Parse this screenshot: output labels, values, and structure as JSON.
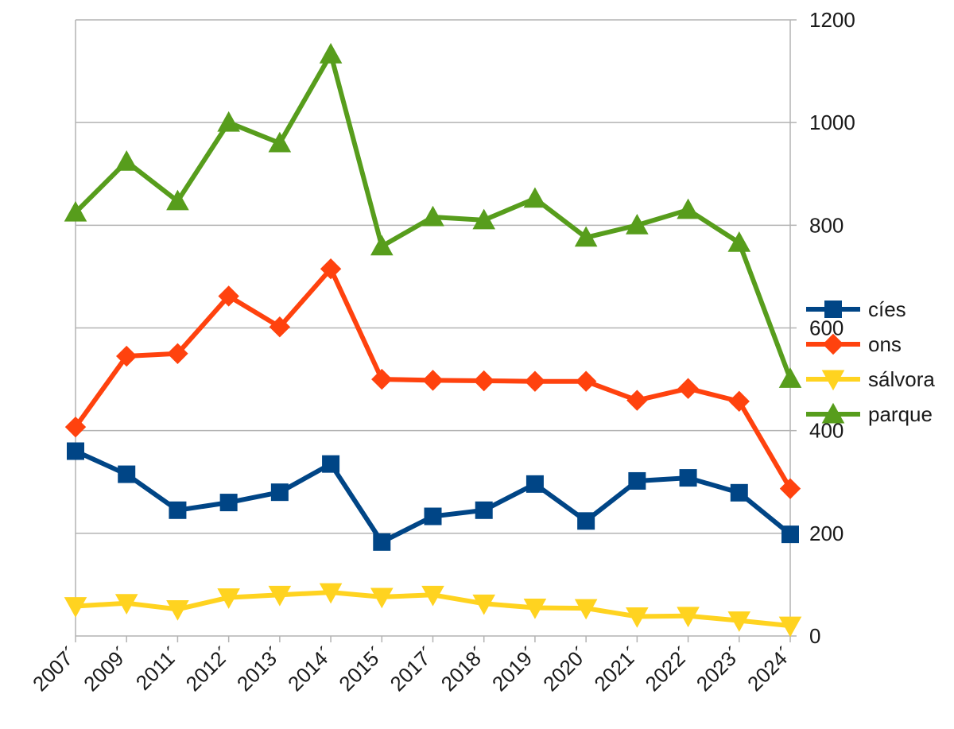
{
  "chart_data": {
    "type": "line",
    "title": "",
    "xlabel": "",
    "ylabel": "",
    "categories": [
      "2007´",
      "2009´",
      "2011´",
      "2012´",
      "2013´",
      "2014´",
      "2015´",
      "2017´",
      "2018´",
      "2019´",
      "2020´",
      "2021´",
      "2022´",
      "2023´",
      "2024´"
    ],
    "ylim": [
      0,
      1200
    ],
    "yticks": [
      0,
      200,
      400,
      600,
      800,
      1000,
      1200
    ],
    "grid": true,
    "y_axis_side": "right",
    "legend_position": "right",
    "series": [
      {
        "name": "cíes",
        "color": "#004586",
        "marker": "square",
        "values": [
          360,
          315,
          245,
          260,
          280,
          335,
          183,
          233,
          245,
          296,
          224,
          302,
          308,
          279,
          198
        ]
      },
      {
        "name": "ons",
        "color": "#ff420e",
        "marker": "diamond",
        "values": [
          407,
          545,
          550,
          662,
          602,
          715,
          500,
          498,
          497,
          496,
          496,
          459,
          482,
          457,
          287
        ]
      },
      {
        "name": "sálvora",
        "color": "#ffd320",
        "marker": "triangle-down",
        "values": [
          58,
          64,
          52,
          75,
          80,
          85,
          76,
          80,
          63,
          55,
          54,
          38,
          39,
          30,
          20
        ]
      },
      {
        "name": "parque",
        "color": "#579d1c",
        "marker": "triangle-up",
        "values": [
          825,
          924,
          847,
          1000,
          960,
          1133,
          759,
          816,
          810,
          852,
          776,
          800,
          830,
          766,
          501
        ]
      }
    ]
  }
}
